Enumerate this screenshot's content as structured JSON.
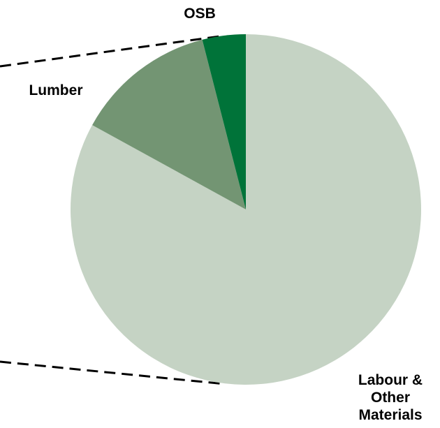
{
  "chart_data": {
    "type": "pie",
    "slices": [
      {
        "label": "Labour & Other Materials",
        "value": 83,
        "color": "#c5d3c4"
      },
      {
        "label": "Lumber",
        "value": 13,
        "color": "#739573"
      },
      {
        "label": "OSB",
        "value": 4,
        "color": "#007339"
      }
    ],
    "title": "",
    "start_angle_deg": 0,
    "direction": "clockwise",
    "connector_lines": "dashed",
    "labels": {
      "osb": "OSB",
      "lumber": "Lumber",
      "labour": "Labour & Other Materials"
    }
  }
}
